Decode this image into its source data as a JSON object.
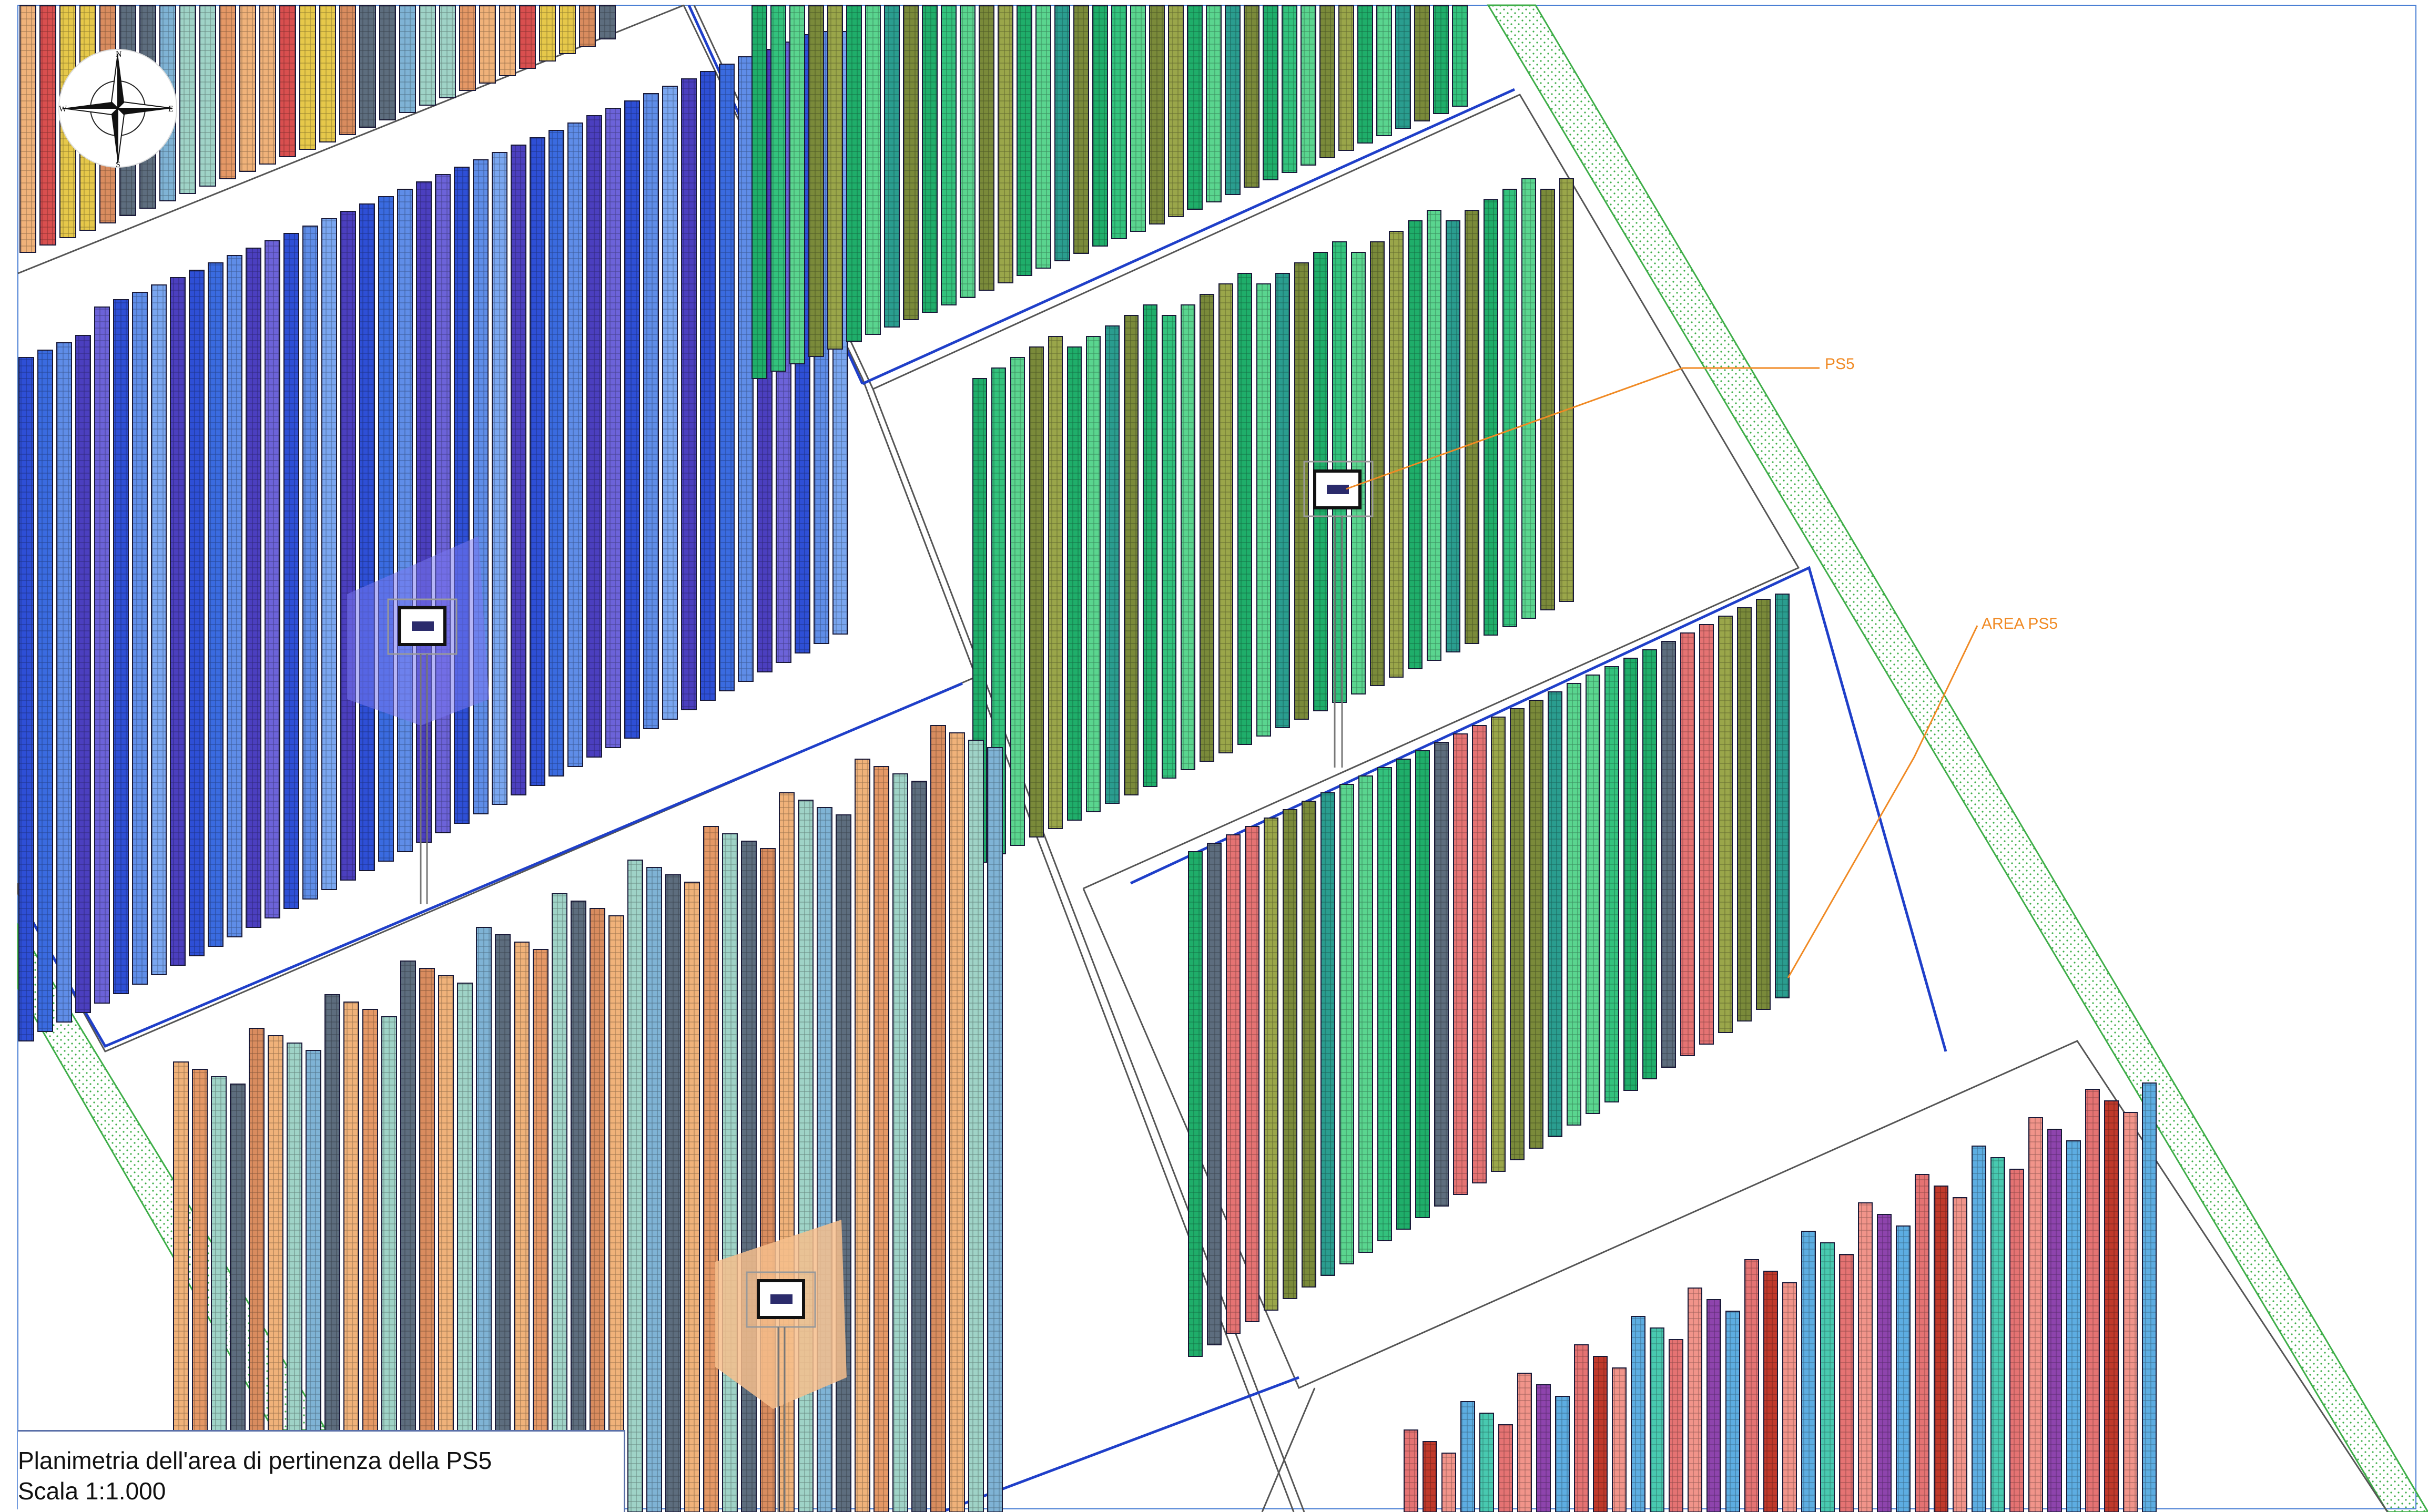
{
  "title_block": {
    "title": "Planimetria dell'area di pertinenza della PS5",
    "scale": "Scala 1:1.000"
  },
  "compass": {
    "north": "N",
    "south": "S",
    "east": "E",
    "west": "W"
  },
  "callouts": [
    {
      "id": "ps5",
      "label": "PS5"
    },
    {
      "id": "area_ps5",
      "label": "AREA PS5"
    }
  ],
  "colors": {
    "blue_block": [
      "#2e4fd6",
      "#3a6be0",
      "#5f8de8",
      "#7aa6f0",
      "#4b3fbf",
      "#6c63d9"
    ],
    "green_block": [
      "#1fae6a",
      "#33c27d",
      "#5ad58f",
      "#2a9d8f",
      "#7a8a3a",
      "#9aa64a"
    ],
    "orange_block": [
      "#f0b27a",
      "#e59866",
      "#9fd3c7",
      "#7fb3d5",
      "#5d6d7e",
      "#d98c5f"
    ],
    "red_block": [
      "#e57373",
      "#c0392b",
      "#f1948a",
      "#8e44ad",
      "#5dade2",
      "#48c9b0"
    ],
    "callout": "#f08a24",
    "boundary": "#1f3fc9",
    "green_buffer": "#3fae49"
  }
}
